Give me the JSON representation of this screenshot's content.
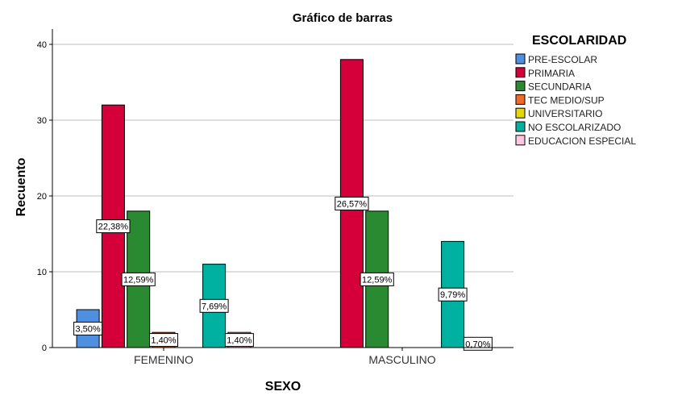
{
  "chart_data": {
    "type": "bar",
    "title": "Gráfico de barras",
    "xlabel": "SEXO",
    "ylabel": "Recuento",
    "ylim": [
      0,
      40
    ],
    "yticks": [
      0,
      10,
      20,
      30,
      40
    ],
    "grid": true,
    "legend_title": "ESCOLARIDAD",
    "legend_placement": "right",
    "categories": [
      "FEMENINO",
      "MASCULINO"
    ],
    "series": [
      {
        "name": "PRE-ESCOLAR",
        "color": "#4f8fe0",
        "values": [
          5,
          0
        ],
        "labels": [
          "3,50%",
          ""
        ]
      },
      {
        "name": "PRIMARIA",
        "color": "#d5003a",
        "values": [
          32,
          38
        ],
        "labels": [
          "22,38%",
          "26,57%"
        ]
      },
      {
        "name": "SECUNDARIA",
        "color": "#2a8a32",
        "values": [
          18,
          18
        ],
        "labels": [
          "12,59%",
          "12,59%"
        ]
      },
      {
        "name": "TEC MEDIO/SUP",
        "color": "#f06a28",
        "values": [
          2,
          0
        ],
        "labels": [
          "1,40%",
          ""
        ]
      },
      {
        "name": "UNIVERSITARIO",
        "color": "#e8d800",
        "values": [
          0,
          0
        ],
        "labels": [
          "",
          ""
        ]
      },
      {
        "name": "NO ESCOLARIZADO",
        "color": "#00b0a0",
        "values": [
          11,
          14
        ],
        "labels": [
          "7,69%",
          "9,79%"
        ]
      },
      {
        "name": "EDUCACION ESPECIAL",
        "color": "#ffc6df",
        "values": [
          2,
          1
        ],
        "labels": [
          "1,40%",
          "0,70%"
        ]
      }
    ]
  }
}
